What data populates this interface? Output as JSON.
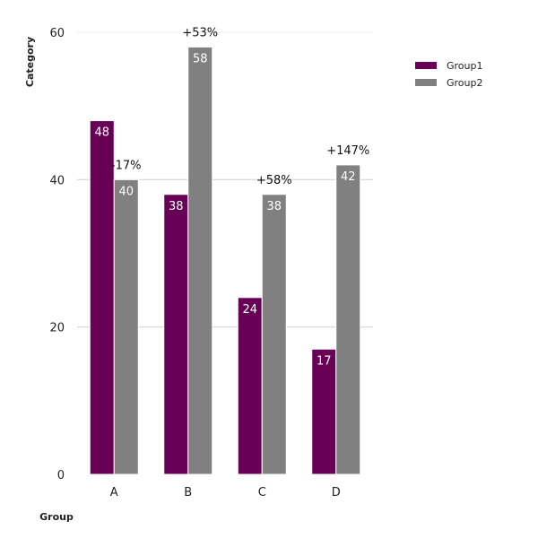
{
  "chart_data": {
    "type": "bar",
    "title": "",
    "xlabel": "Group",
    "ylabel": "Category",
    "categories": [
      "A",
      "B",
      "C",
      "D"
    ],
    "series": [
      {
        "name": "Group1",
        "values": [
          48,
          38,
          24,
          17
        ],
        "color": "#680055"
      },
      {
        "name": "Group2",
        "values": [
          40,
          58,
          38,
          42
        ],
        "color": "#808080"
      }
    ],
    "change_labels": [
      "-17%",
      "+53%",
      "+58%",
      "+147%"
    ],
    "ylim": [
      0,
      60
    ],
    "yticks": [
      0,
      20,
      40,
      60
    ],
    "grid": true,
    "legend_position": "top-right"
  }
}
